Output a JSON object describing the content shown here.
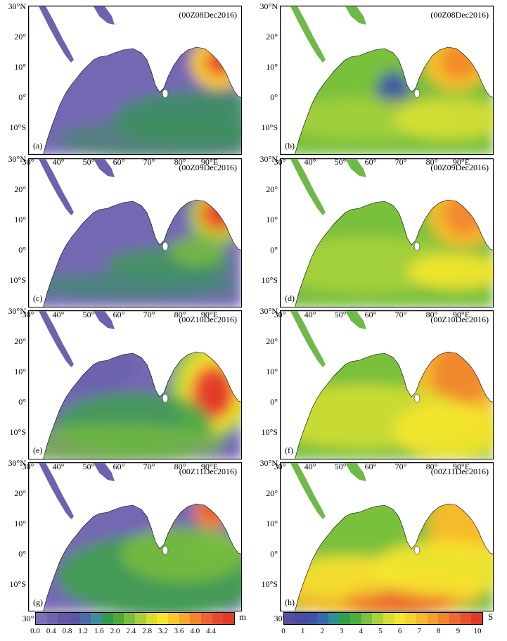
{
  "panels": [
    {
      "id": "a",
      "letter": "(a)",
      "date": "(00Z08Dec2016)",
      "field": "height"
    },
    {
      "id": "b",
      "letter": "(b)",
      "date": "(00Z08Dec2016)",
      "field": "period"
    },
    {
      "id": "c",
      "letter": "(c)",
      "date": "(00Z09Dec2016)",
      "field": "height"
    },
    {
      "id": "d",
      "letter": "(d)",
      "date": "(00Z09Dec2016)",
      "field": "period"
    },
    {
      "id": "e",
      "letter": "(e)",
      "date": "(00Z10Dec2016)",
      "field": "height"
    },
    {
      "id": "f",
      "letter": "(f)",
      "date": "(00Z10Dec2016)",
      "field": "period"
    },
    {
      "id": "g",
      "letter": "(g)",
      "date": "(00Z11Dec2016)",
      "field": "height"
    },
    {
      "id": "h",
      "letter": "(h)",
      "date": "(00Z11Dec2016)",
      "field": "period"
    }
  ],
  "axes": {
    "lat_labels": [
      "30°N",
      "20°",
      "10°",
      "0°",
      "10°S"
    ],
    "lon_labels": [
      "30°",
      "40°",
      "50°",
      "60°",
      "70°",
      "80°",
      "90°E"
    ]
  },
  "colorbar_height": {
    "unit": "m",
    "labels": [
      "0.0",
      "0.4",
      "0.8",
      "1.2",
      "1.6",
      "2.0",
      "2.4",
      "2.8",
      "3.2",
      "3.6",
      "4.0",
      "4.4"
    ],
    "colors": [
      "#7b6fb6",
      "#6f63ad",
      "#6459a6",
      "#5a57a6",
      "#4c6aa8",
      "#3f8f9a",
      "#2f9a4e",
      "#4ca83a",
      "#7abf3c",
      "#a8cf3a",
      "#d7dc33",
      "#f5e52e",
      "#f8c82b",
      "#f7a72c",
      "#f3862c",
      "#ee6430",
      "#e84930",
      "#e23a2a"
    ]
  },
  "colorbar_period": {
    "unit": "S",
    "labels": [
      "0",
      "1",
      "2",
      "3",
      "4",
      "5",
      "6",
      "7",
      "8",
      "9",
      "10"
    ],
    "colors": [
      "#584ea0",
      "#4a4aa3",
      "#3f52a8",
      "#356ba8",
      "#2f8f93",
      "#2f9f4a",
      "#4fae3a",
      "#7cc03d",
      "#a9d23b",
      "#d6df34",
      "#f5e52e",
      "#f6d22c",
      "#f6bb2c",
      "#f4a02c",
      "#f1852d",
      "#ec6a2f",
      "#e64f30",
      "#df3a2b"
    ]
  }
}
